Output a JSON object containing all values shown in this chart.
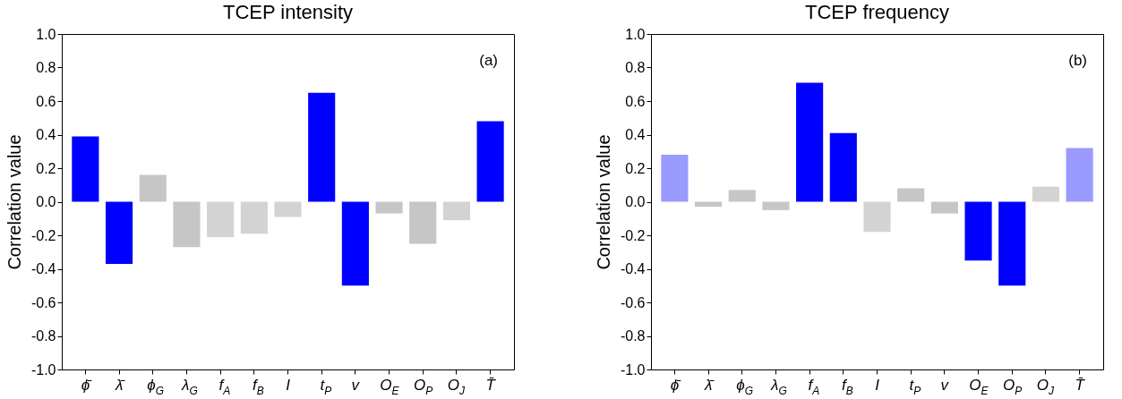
{
  "chart_data": [
    {
      "type": "bar",
      "title": "TCEP intensity",
      "ylabel": "Correlation value",
      "annotations": [
        "(a)"
      ],
      "categories": [
        "ϕ̄",
        "λ̄",
        "ϕ$_{G}$",
        "λ$_{G}$",
        "f$_{A}$",
        "f$_{B}$",
        "I",
        "t$_{P}$",
        "v",
        "O$_{E}$",
        "O$_{P}$",
        "O$_{J}$",
        "T̄"
      ],
      "values": [
        0.39,
        -0.37,
        0.16,
        -0.27,
        -0.21,
        -0.19,
        -0.09,
        0.65,
        -0.5,
        -0.07,
        -0.25,
        -0.11,
        0.48
      ],
      "colors": [
        "#0000ff",
        "#0000ff",
        "#c6c6c6",
        "#c6c6c6",
        "#d3d3d3",
        "#d3d3d3",
        "#d3d3d3",
        "#0000ff",
        "#0000ff",
        "#c6c6c6",
        "#c6c6c6",
        "#d3d3d3",
        "#0000ff"
      ],
      "ylim": [
        -1,
        1
      ],
      "yticks": [
        {
          "value": -1,
          "label": "-1.0"
        },
        {
          "value": -0.8,
          "label": "-0.8"
        },
        {
          "value": -0.6,
          "label": "-0.6"
        },
        {
          "value": -0.4,
          "label": "-0.4"
        },
        {
          "value": -0.2,
          "label": "-0.2"
        },
        {
          "value": 0,
          "label": "0.0"
        },
        {
          "value": 0.2,
          "label": "0.2"
        },
        {
          "value": 0.4,
          "label": "0.4"
        },
        {
          "value": 0.6,
          "label": "0.6"
        },
        {
          "value": 0.8,
          "label": "0.8"
        },
        {
          "value": 1,
          "label": "1.0"
        }
      ],
      "grid": false
    },
    {
      "type": "bar",
      "title": "TCEP frequency",
      "ylabel": "Correlation value",
      "annotations": [
        "(b)"
      ],
      "categories": [
        "ϕ̄",
        "λ̄",
        "ϕ$_{G}$",
        "λ$_{G}$",
        "f$_{A}$",
        "f$_{B}$",
        "I",
        "t$_{P}$",
        "v",
        "O$_{E}$",
        "O$_{P}$",
        "O$_{J}$",
        "T̄"
      ],
      "values": [
        0.28,
        -0.03,
        0.07,
        -0.05,
        0.71,
        0.41,
        -0.18,
        0.08,
        -0.07,
        -0.35,
        -0.5,
        0.09,
        0.32
      ],
      "colors": [
        "#9a9aff",
        "#c6c6c6",
        "#c6c6c6",
        "#c6c6c6",
        "#0000ff",
        "#0000ff",
        "#d3d3d3",
        "#c6c6c6",
        "#c6c6c6",
        "#0000ff",
        "#0000ff",
        "#d3d3d3",
        "#9a9aff"
      ],
      "ylim": [
        -1,
        1
      ],
      "yticks": [
        {
          "value": -1,
          "label": "-1.0"
        },
        {
          "value": -0.8,
          "label": "-0.8"
        },
        {
          "value": -0.6,
          "label": "-0.6"
        },
        {
          "value": -0.4,
          "label": "-0.4"
        },
        {
          "value": -0.2,
          "label": "-0.2"
        },
        {
          "value": 0,
          "label": "0.0"
        },
        {
          "value": 0.2,
          "label": "0.2"
        },
        {
          "value": 0.4,
          "label": "0.4"
        },
        {
          "value": 0.6,
          "label": "0.6"
        },
        {
          "value": 0.8,
          "label": "0.8"
        },
        {
          "value": 1,
          "label": "1.0"
        }
      ],
      "grid": false
    }
  ]
}
